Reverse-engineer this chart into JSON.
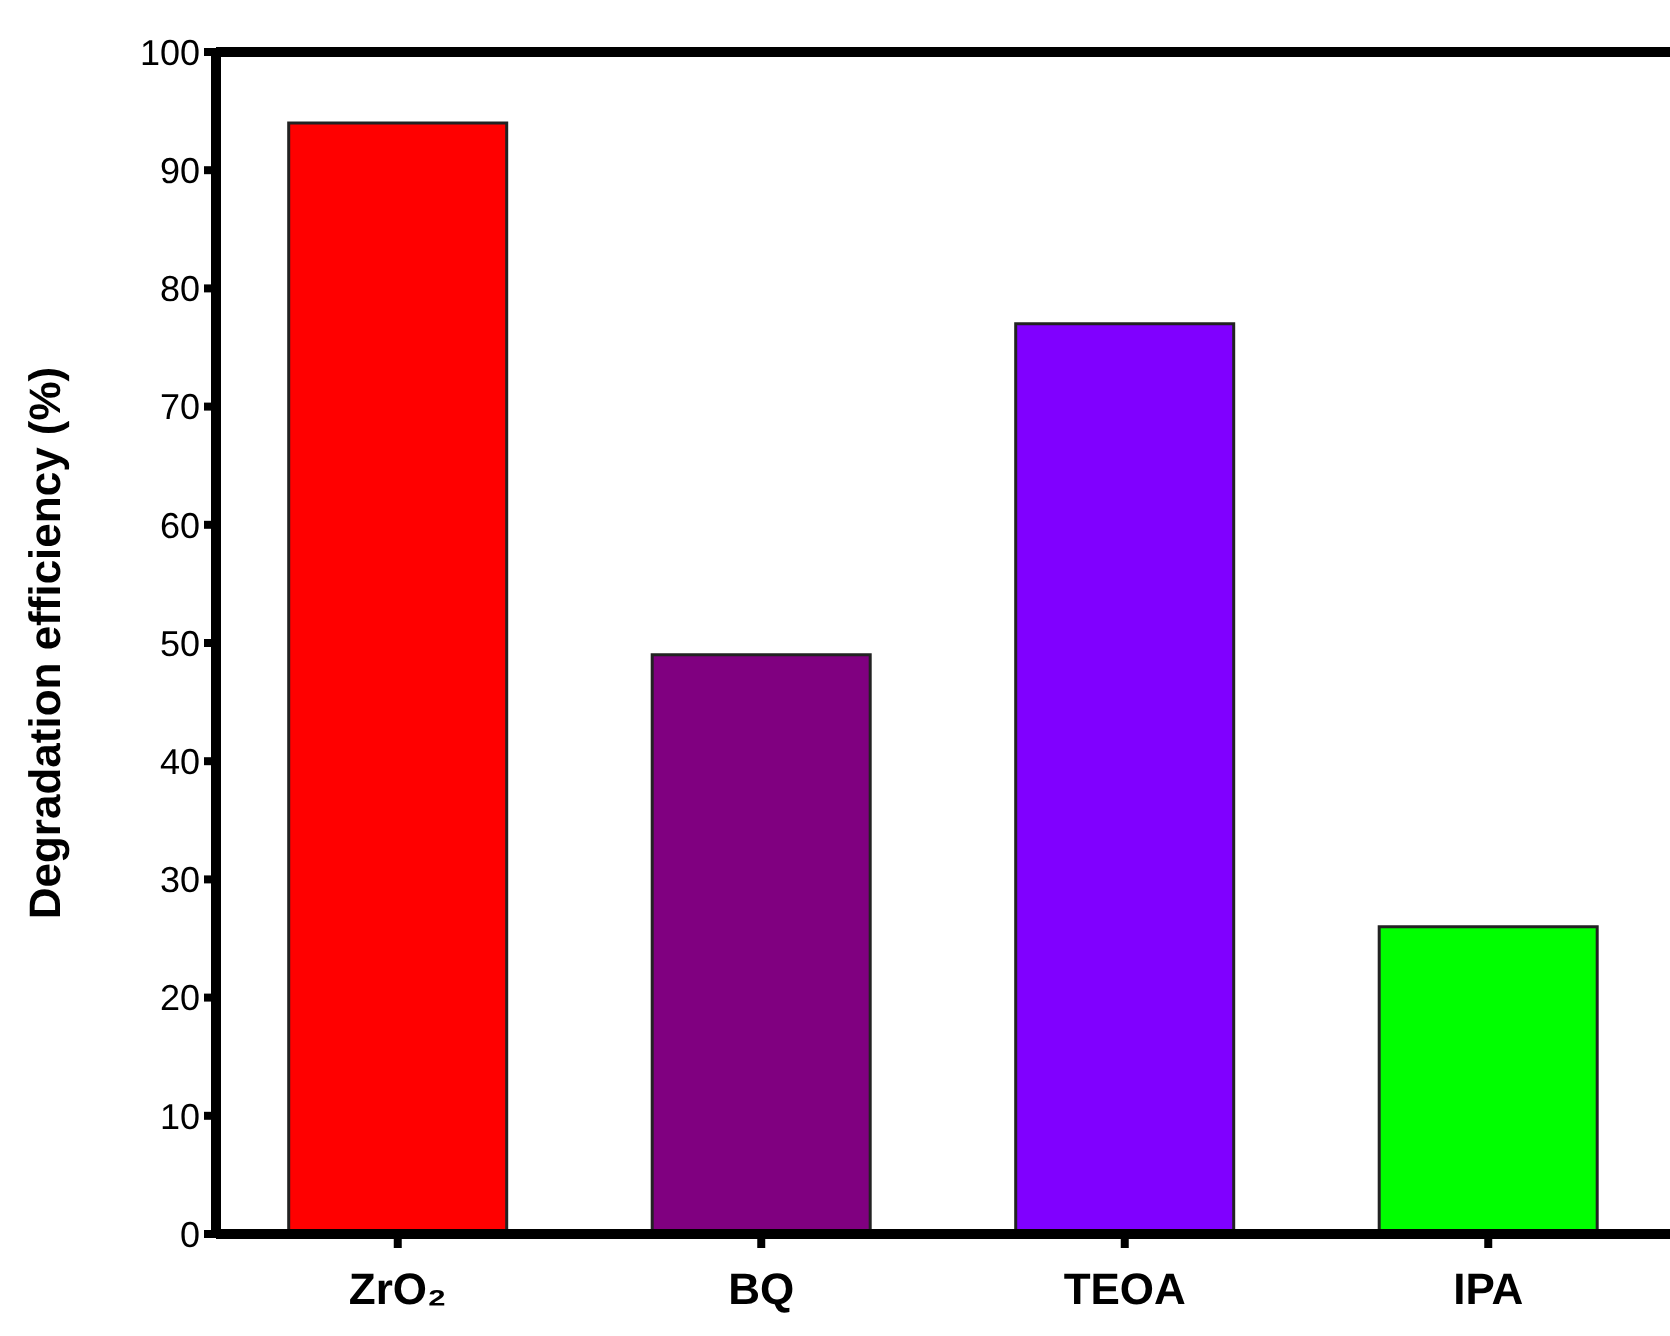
{
  "chart_data": {
    "type": "bar",
    "ylabel": "Degradation efficiency (%)",
    "categories": [
      "ZrO₂",
      "BQ",
      "TEOA",
      "IPA"
    ],
    "values": [
      94,
      49,
      77,
      26
    ],
    "colors": [
      "#ff0000",
      "#800080",
      "#8000ff",
      "#00ff00"
    ],
    "ylim": [
      0,
      100
    ],
    "yticks": [
      0,
      10,
      20,
      30,
      40,
      50,
      60,
      70,
      80,
      90,
      100
    ]
  }
}
